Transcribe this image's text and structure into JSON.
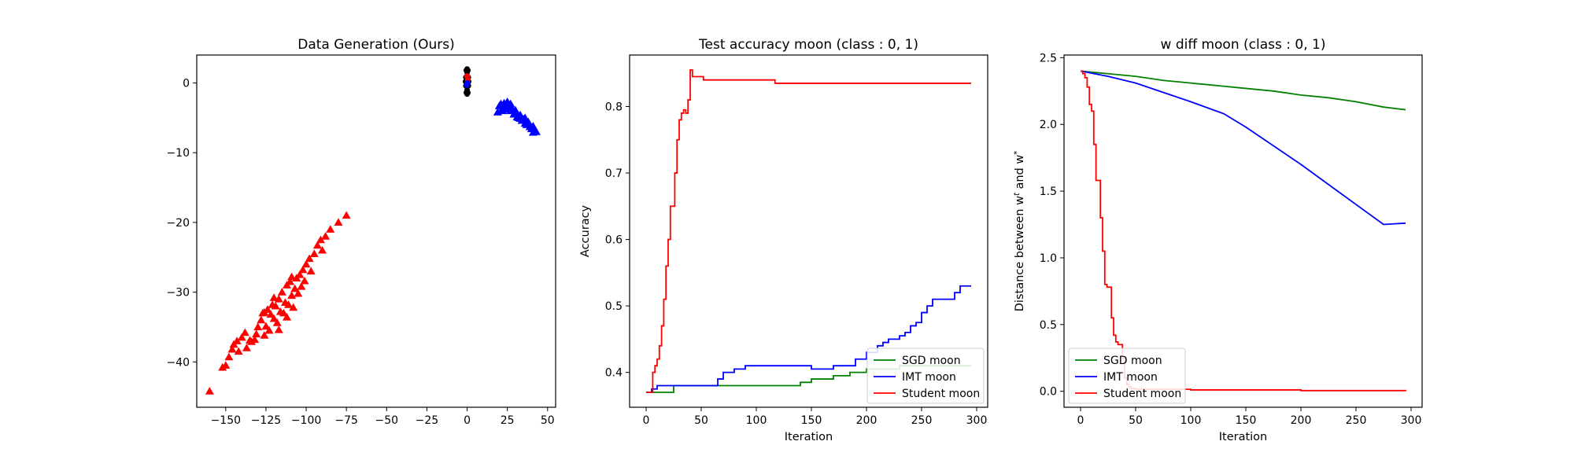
{
  "chart_data": [
    {
      "type": "scatter",
      "title": "Data Generation (Ours)",
      "xlabel": "",
      "ylabel": "",
      "xlim": [
        -168,
        55
      ],
      "ylim": [
        -46.5,
        4
      ],
      "xticks": [
        -150,
        -125,
        -100,
        -75,
        -50,
        -25,
        0,
        25,
        50
      ],
      "xtick_labels": [
        "−150",
        "−125",
        "−100",
        "−75",
        "−50",
        "−25",
        "0",
        "25",
        "50"
      ],
      "yticks": [
        0,
        -10,
        -20,
        -30,
        -40
      ],
      "ytick_labels": [
        "0",
        "−10",
        "−20",
        "−30",
        "−40"
      ],
      "grid": false,
      "series": [
        {
          "marker": "triangle",
          "color": "#ff0000",
          "points": [
            [
              -160,
              -44.2
            ],
            [
              -152,
              -40.8
            ],
            [
              -150,
              -40.5
            ],
            [
              -148,
              -39.3
            ],
            [
              -146,
              -38.2
            ],
            [
              -145,
              -37.5
            ],
            [
              -143,
              -37.0
            ],
            [
              -142,
              -38.5
            ],
            [
              -140,
              -36.5
            ],
            [
              -138,
              -35.8
            ],
            [
              -137,
              -38.0
            ],
            [
              -134,
              -37.1
            ],
            [
              -132,
              -36.8
            ],
            [
              -130,
              -35.0
            ],
            [
              -128,
              -34.0
            ],
            [
              -127,
              -33.0
            ],
            [
              -126,
              -36.2
            ],
            [
              -125,
              -34.9
            ],
            [
              -124,
              -32.5
            ],
            [
              -123,
              -35.5
            ],
            [
              -122,
              -33.2
            ],
            [
              -121,
              -31.8
            ],
            [
              -120,
              -33.8
            ],
            [
              -119,
              -32.0
            ],
            [
              -118,
              -34.4
            ],
            [
              -117,
              -31.0
            ],
            [
              -116,
              -32.8
            ],
            [
              -115,
              -30.0
            ],
            [
              -114,
              -33.0
            ],
            [
              -113,
              -31.5
            ],
            [
              -112,
              -29.0
            ],
            [
              -111,
              -31.8
            ],
            [
              -110,
              -28.5
            ],
            [
              -109,
              -30.5
            ],
            [
              -108,
              -32.2
            ],
            [
              -107,
              -29.5
            ],
            [
              -106,
              -28.0
            ],
            [
              -105,
              -30.2
            ],
            [
              -104,
              -27.5
            ],
            [
              -103,
              -29.2
            ],
            [
              -102,
              -26.8
            ],
            [
              -101,
              -28.4
            ],
            [
              -100,
              -26.0
            ],
            [
              -98,
              -25.2
            ],
            [
              -97,
              -27.0
            ],
            [
              -95,
              -24.5
            ],
            [
              -93,
              -23.3
            ],
            [
              -91,
              -22.5
            ],
            [
              -90,
              -24.0
            ],
            [
              -88,
              -22.0
            ],
            [
              -85,
              -21.0
            ],
            [
              -80,
              -20.0
            ],
            [
              -75,
              -19.0
            ],
            [
              -131,
              -36.0
            ],
            [
              -120,
              -30.8
            ],
            [
              -117,
              -35.4
            ],
            [
              -112,
              -33.6
            ],
            [
              -109,
              -27.8
            ],
            [
              -126,
              -32.9
            ],
            [
              -135,
              -36.9
            ]
          ]
        },
        {
          "marker": "triangle",
          "color": "#0000ff",
          "points": [
            [
              19,
              -4.2
            ],
            [
              20,
              -3.3
            ],
            [
              21,
              -3.0
            ],
            [
              22,
              -3.6
            ],
            [
              23,
              -2.9
            ],
            [
              24,
              -3.2
            ],
            [
              25,
              -3.8
            ],
            [
              26,
              -3.5
            ],
            [
              27,
              -4.0
            ],
            [
              28,
              -3.7
            ],
            [
              29,
              -4.5
            ],
            [
              30,
              -4.2
            ],
            [
              31,
              -4.9
            ],
            [
              32,
              -5.0
            ],
            [
              33,
              -4.6
            ],
            [
              34,
              -5.4
            ],
            [
              35,
              -5.2
            ],
            [
              36,
              -5.8
            ],
            [
              37,
              -6.0
            ],
            [
              38,
              -5.6
            ],
            [
              39,
              -6.3
            ],
            [
              40,
              -6.6
            ],
            [
              41,
              -6.2
            ],
            [
              42,
              -6.9
            ],
            [
              43,
              -7.0
            ],
            [
              22,
              -4.0
            ],
            [
              25,
              -2.7
            ],
            [
              27,
              -3.0
            ],
            [
              30,
              -3.9
            ],
            [
              33,
              -5.1
            ],
            [
              36,
              -5.0
            ],
            [
              41,
              -7.1
            ]
          ]
        },
        {
          "marker": "circle",
          "color": "#000000",
          "points": [
            [
              0,
              1.5
            ],
            [
              0,
              1.0
            ],
            [
              0,
              0.5
            ],
            [
              0,
              0.0
            ],
            [
              0,
              -0.5
            ],
            [
              0,
              -1.0
            ],
            [
              -0.8,
              0.8
            ],
            [
              0.8,
              0.8
            ],
            [
              -0.8,
              -0.4
            ],
            [
              0.8,
              -0.4
            ],
            [
              -0.5,
              1.8
            ],
            [
              0.5,
              1.8
            ],
            [
              -0.5,
              -1.4
            ],
            [
              0.5,
              -1.4
            ],
            [
              0,
              2.0
            ],
            [
              0,
              -1.6
            ],
            [
              -1,
              0.2
            ],
            [
              1,
              0.2
            ],
            [
              -0.3,
              0.3
            ],
            [
              0.3,
              -0.2
            ]
          ]
        },
        {
          "marker": "circle",
          "color": "#ff0000",
          "points": [
            [
              0,
              1.0
            ],
            [
              0.3,
              0.5
            ]
          ]
        },
        {
          "marker": "circle",
          "color": "#0000ff",
          "points": [
            [
              0.2,
              0.0
            ],
            [
              -0.2,
              -0.3
            ]
          ]
        }
      ]
    },
    {
      "type": "line",
      "title": "Test accuracy moon (class : 0, 1)",
      "xlabel": "Iteration",
      "ylabel": "Accuracy",
      "xlim": [
        -15,
        310
      ],
      "ylim": [
        0.3475,
        0.8775
      ],
      "xticks": [
        0,
        50,
        100,
        150,
        200,
        250,
        300
      ],
      "xtick_labels": [
        "0",
        "50",
        "100",
        "150",
        "200",
        "250",
        "300"
      ],
      "yticks": [
        0.4,
        0.5,
        0.6,
        0.7,
        0.8
      ],
      "ytick_labels": [
        "0.4",
        "0.5",
        "0.6",
        "0.7",
        "0.8"
      ],
      "grid": false,
      "legend": {
        "position": "lower right",
        "entries": [
          "SGD moon",
          "IMT moon",
          "Student moon"
        ]
      },
      "series": [
        {
          "name": "SGD moon",
          "color": "#008000",
          "step": true,
          "x": [
            0,
            18,
            25,
            65,
            140,
            150,
            170,
            185,
            200,
            230,
            295
          ],
          "y": [
            0.37,
            0.37,
            0.38,
            0.38,
            0.385,
            0.39,
            0.395,
            0.4,
            0.405,
            0.41,
            0.41
          ]
        },
        {
          "name": "IMT moon",
          "color": "#0000ff",
          "step": true,
          "x": [
            0,
            5,
            10,
            15,
            20,
            30,
            60,
            65,
            70,
            80,
            90,
            100,
            130,
            150,
            170,
            190,
            200,
            210,
            215,
            220,
            230,
            235,
            240,
            245,
            250,
            255,
            260,
            270,
            280,
            285,
            295
          ],
          "y": [
            0.37,
            0.375,
            0.38,
            0.38,
            0.38,
            0.38,
            0.38,
            0.39,
            0.4,
            0.405,
            0.41,
            0.41,
            0.41,
            0.405,
            0.41,
            0.42,
            0.43,
            0.44,
            0.445,
            0.45,
            0.455,
            0.46,
            0.47,
            0.475,
            0.49,
            0.5,
            0.51,
            0.51,
            0.52,
            0.53,
            0.53
          ]
        },
        {
          "name": "Student moon",
          "color": "#ff0000",
          "step": true,
          "x": [
            0,
            3,
            6,
            8,
            10,
            12,
            14,
            16,
            18,
            20,
            22,
            24,
            26,
            28,
            30,
            32,
            34,
            36,
            38,
            40,
            42,
            44,
            50,
            52,
            58,
            115,
            117,
            295
          ],
          "y": [
            0.37,
            0.37,
            0.4,
            0.41,
            0.42,
            0.44,
            0.47,
            0.51,
            0.56,
            0.6,
            0.65,
            0.65,
            0.7,
            0.75,
            0.78,
            0.79,
            0.795,
            0.79,
            0.81,
            0.855,
            0.845,
            0.845,
            0.845,
            0.84,
            0.84,
            0.84,
            0.835,
            0.835
          ]
        }
      ]
    },
    {
      "type": "line",
      "title": "w diff moon (class : 0, 1)",
      "xlabel": "Iteration",
      "ylabel": "Distance between w^t and w^*",
      "xlim": [
        -15,
        310
      ],
      "ylim": [
        -0.12,
        2.52
      ],
      "xticks": [
        0,
        50,
        100,
        150,
        200,
        250,
        300
      ],
      "xtick_labels": [
        "0",
        "50",
        "100",
        "150",
        "200",
        "250",
        "300"
      ],
      "yticks": [
        0.0,
        0.5,
        1.0,
        1.5,
        2.0,
        2.5
      ],
      "ytick_labels": [
        "0.0",
        "0.5",
        "1.0",
        "1.5",
        "2.0",
        "2.5"
      ],
      "grid": false,
      "legend": {
        "position": "lower left",
        "entries": [
          "SGD moon",
          "IMT moon",
          "Student moon"
        ]
      },
      "series": [
        {
          "name": "SGD moon",
          "color": "#008000",
          "x": [
            0,
            25,
            50,
            75,
            100,
            125,
            150,
            175,
            200,
            225,
            250,
            275,
            295
          ],
          "y": [
            2.4,
            2.38,
            2.36,
            2.33,
            2.31,
            2.29,
            2.27,
            2.25,
            2.22,
            2.2,
            2.17,
            2.13,
            2.11
          ]
        },
        {
          "name": "IMT moon",
          "color": "#0000ff",
          "x": [
            0,
            25,
            50,
            75,
            100,
            130,
            150,
            175,
            200,
            225,
            250,
            275,
            295
          ],
          "y": [
            2.4,
            2.36,
            2.31,
            2.24,
            2.17,
            2.08,
            1.98,
            1.84,
            1.7,
            1.55,
            1.4,
            1.25,
            1.26
          ]
        },
        {
          "name": "Student moon",
          "color": "#ff0000",
          "step": true,
          "x": [
            0,
            2,
            4,
            6,
            8,
            10,
            12,
            14,
            16,
            18,
            20,
            22,
            24,
            26,
            28,
            30,
            32,
            34,
            36,
            38,
            40,
            42,
            44,
            46,
            50,
            100,
            200,
            295
          ],
          "y": [
            2.4,
            2.38,
            2.35,
            2.28,
            2.15,
            2.1,
            1.85,
            1.58,
            1.58,
            1.3,
            1.05,
            0.8,
            0.78,
            0.78,
            0.55,
            0.42,
            0.37,
            0.35,
            0.35,
            0.25,
            0.1,
            0.05,
            0.03,
            0.02,
            0.015,
            0.01,
            0.005,
            0.0
          ]
        }
      ]
    }
  ]
}
